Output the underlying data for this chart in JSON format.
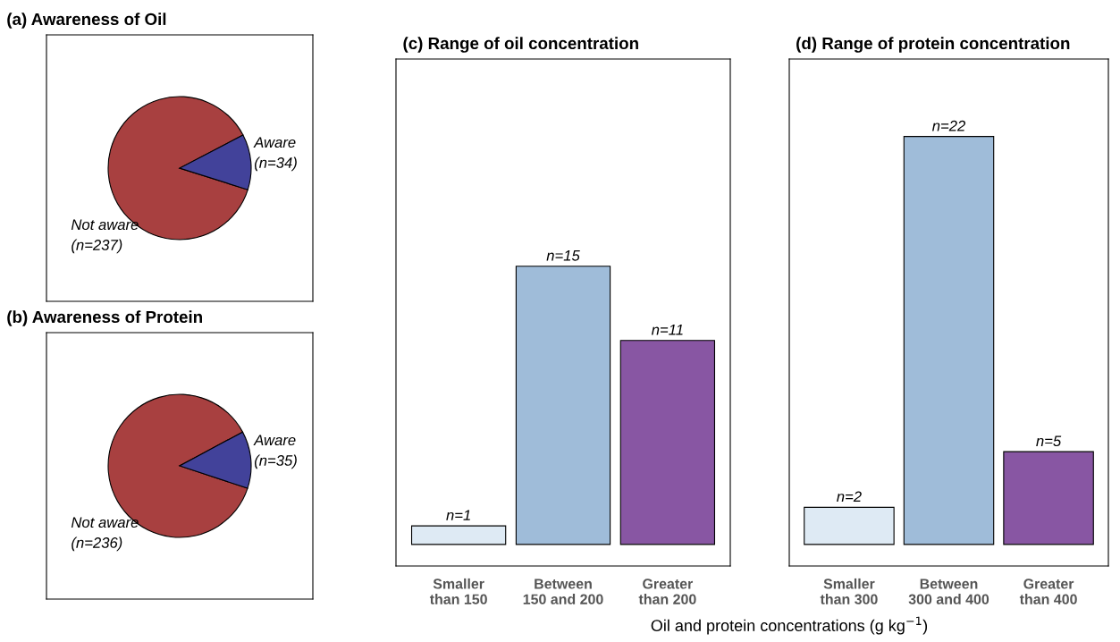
{
  "chart_data": [
    {
      "type": "pie",
      "title": "(a) Awareness of Oil",
      "categories": [
        "Not aware",
        "Aware"
      ],
      "values": [
        237,
        34
      ],
      "value_labels": [
        "(n=237)",
        "(n=34)"
      ],
      "colors": [
        "#a84040",
        "#42429a"
      ]
    },
    {
      "type": "pie",
      "title": "(b) Awareness of Protein",
      "categories": [
        "Not aware",
        "Aware"
      ],
      "values": [
        236,
        35
      ],
      "value_labels": [
        "(n=236)",
        "(n=35)"
      ],
      "colors": [
        "#a84040",
        "#42429a"
      ]
    },
    {
      "type": "bar",
      "title": "(c) Range of oil concentration",
      "categories": [
        "Smaller\nthan 150",
        "Between\n150 and 200",
        "Greater\nthan 200"
      ],
      "values": [
        1,
        15,
        11
      ],
      "value_labels": [
        "n=1",
        "n=15",
        "n=11"
      ],
      "colors": [
        "#deeaf4",
        "#9fbcd9",
        "#8856a3"
      ]
    },
    {
      "type": "bar",
      "title": "(d) Range of protein concentration",
      "categories": [
        "Smaller\nthan 300",
        "Between\n300 and 400",
        "Greater\nthan 400"
      ],
      "values": [
        2,
        22,
        5
      ],
      "value_labels": [
        "n=2",
        "n=22",
        "n=5"
      ],
      "colors": [
        "#deeaf4",
        "#9fbcd9",
        "#8856a3"
      ],
      "xlabel": "Oil and protein concentrations (g kg$^{−1}$)"
    }
  ]
}
